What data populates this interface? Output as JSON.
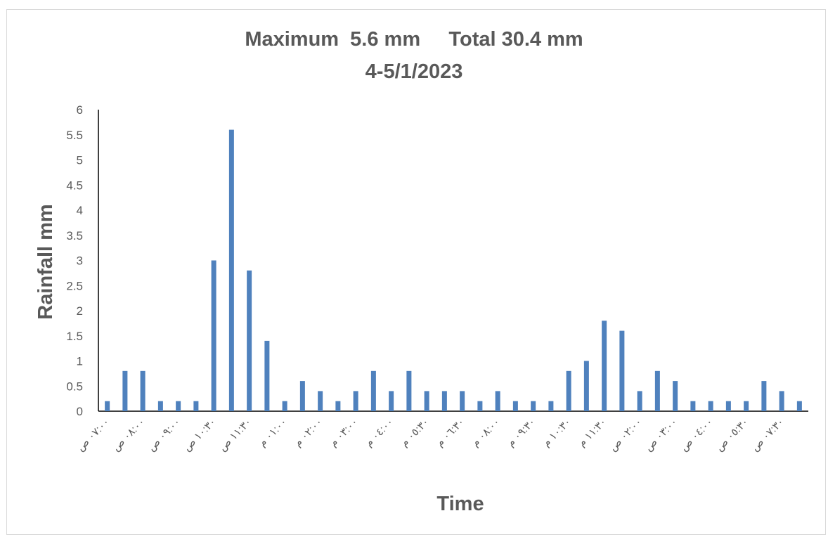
{
  "chart_data": {
    "type": "bar",
    "title": "Maximum  5.6 mm     Total 30.4 mm",
    "subtitle": "4-5/1/2023",
    "xlabel": "Time",
    "ylabel": "Rainfall mm",
    "ylim": [
      0,
      6
    ],
    "yticks": [
      "0",
      "0.5",
      "1",
      "1.5",
      "2",
      "2.5",
      "3",
      "3.5",
      "4",
      "4.5",
      "5",
      "5.5",
      "6"
    ],
    "grid": false,
    "legend": "none",
    "bar_color": "#4f81bd",
    "values": [
      0.2,
      0.8,
      0.8,
      0.2,
      0.2,
      0.2,
      3.0,
      5.6,
      2.8,
      1.4,
      0.2,
      0.6,
      0.4,
      0.2,
      0.4,
      0.8,
      0.4,
      0.8,
      0.4,
      0.4,
      0.4,
      0.2,
      0.4,
      0.2,
      0.2,
      0.2,
      0.8,
      1.0,
      1.8,
      1.6,
      0.4,
      0.8,
      0.6,
      0.2,
      0.2,
      0.2,
      0.2,
      0.6,
      0.4,
      0.2
    ],
    "x_tick_labels": [
      "٠٧:٠٠ ص",
      "٠٨:٠٠ ص",
      "٠٩:٠٠ ص",
      "١٠:٣٠ ص",
      "١١:٣٠ ص",
      "٠١:٠٠ م",
      "٠٢:٠٠ م",
      "٠٣:٠٠ م",
      "٠٤:٠٠ م",
      "٠٥:٣٠ م",
      "٠٦:٣٠ م",
      "٠٨:٠٠ م",
      "٠٩:٣٠ م",
      "١٠:٣٠ م",
      "١١:٣٠ م",
      "٠٢:٠٠ ص",
      "٠٣:٠٠ ص",
      "٠٤:٠٠ ص",
      "٠٥:٣٠ ص",
      "٠٧:٣٠ ص"
    ]
  }
}
